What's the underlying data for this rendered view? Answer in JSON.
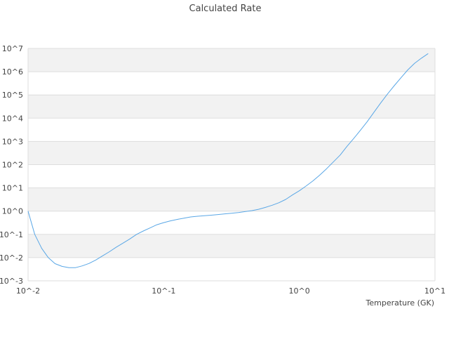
{
  "chart_data": {
    "type": "line",
    "title": "Calculated Rate",
    "xlabel": "Temperature (GK)",
    "ylabel": "",
    "x_scale": "log",
    "y_scale": "log",
    "xlim": [
      0.01,
      10
    ],
    "ylim": [
      0.001,
      10000000
    ],
    "grid": "horizontal alternating bands",
    "legend": "none",
    "x_tick_labels": [
      "10^-2",
      "10^-1",
      "10^0",
      "10^1"
    ],
    "y_tick_labels": [
      "10^-3",
      "10^-2",
      "10^-1",
      "10^0",
      "10^1",
      "10^2",
      "10^3",
      "10^4",
      "10^5",
      "10^6",
      "10^7"
    ],
    "colors": {
      "line": "#5aa7e6",
      "band": "#f2f2f2",
      "grid": "#dddddd",
      "text": "#444444"
    },
    "series": [
      {
        "x": [
          0.01,
          0.0112,
          0.0126,
          0.0141,
          0.0158,
          0.0178,
          0.02,
          0.0224,
          0.0251,
          0.0282,
          0.0316,
          0.0355,
          0.0398,
          0.0447,
          0.0501,
          0.0562,
          0.0631,
          0.0708,
          0.0794,
          0.0891,
          0.1,
          0.112,
          0.126,
          0.141,
          0.158,
          0.178,
          0.2,
          0.224,
          0.251,
          0.282,
          0.316,
          0.355,
          0.398,
          0.447,
          0.501,
          0.562,
          0.631,
          0.708,
          0.794,
          0.891,
          1.0,
          1.12,
          1.26,
          1.41,
          1.58,
          1.78,
          2.0,
          2.24,
          2.51,
          2.82,
          3.16,
          3.55,
          3.98,
          4.47,
          5.01,
          5.62,
          6.31,
          7.08,
          7.94,
          8.91
        ],
        "y": [
          1.0,
          0.1,
          0.025,
          0.01,
          0.0055,
          0.0042,
          0.0037,
          0.0037,
          0.0044,
          0.0056,
          0.0079,
          0.012,
          0.018,
          0.028,
          0.042,
          0.063,
          0.1,
          0.14,
          0.19,
          0.26,
          0.32,
          0.38,
          0.44,
          0.5,
          0.56,
          0.6,
          0.63,
          0.67,
          0.71,
          0.76,
          0.81,
          0.87,
          0.95,
          1.05,
          1.2,
          1.45,
          1.8,
          2.3,
          3.2,
          5.0,
          7.5,
          12,
          20,
          35,
          65,
          130,
          260,
          600,
          1300,
          3000,
          7000,
          18000,
          45000,
          110000,
          250000,
          550000,
          1200000,
          2300000,
          3800000,
          6000000
        ]
      }
    ]
  }
}
